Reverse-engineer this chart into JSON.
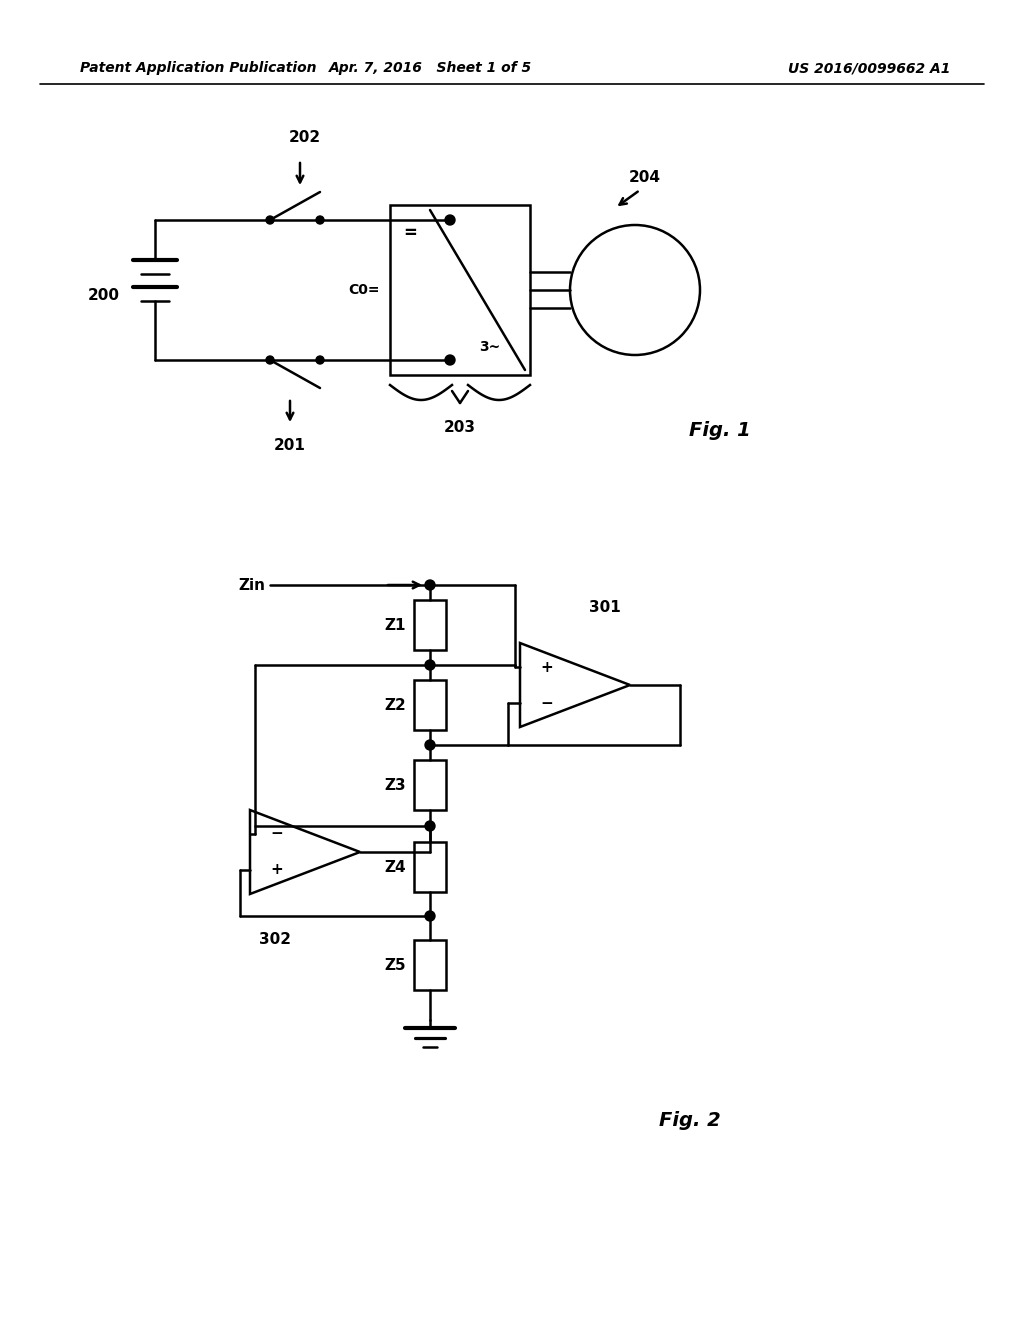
{
  "bg_color": "#ffffff",
  "line_color": "#000000",
  "header_left": "Patent Application Publication",
  "header_mid": "Apr. 7, 2016   Sheet 1 of 5",
  "header_right": "US 2016/0099662 A1",
  "fig1_label": "Fig. 1",
  "fig2_label": "Fig. 2"
}
